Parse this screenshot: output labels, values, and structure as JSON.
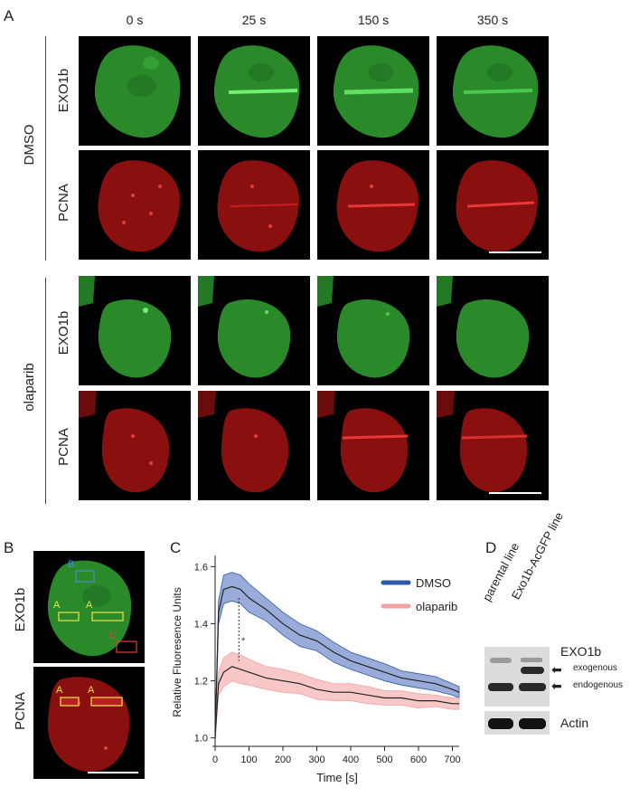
{
  "panel_letters": {
    "a": "A",
    "b": "B",
    "c": "C",
    "d": "D"
  },
  "panel_a": {
    "timepoints": [
      "0 s",
      "25 s",
      "150 s",
      "350 s"
    ],
    "conditions": [
      "DMSO",
      "olaparib"
    ],
    "channels": [
      "EXO1b",
      "PCNA"
    ]
  },
  "panel_b": {
    "channels": [
      "EXO1b",
      "PCNA"
    ],
    "roi_labels": {
      "a": "A",
      "b": "B",
      "c": "C"
    }
  },
  "chart_data": {
    "type": "line",
    "title": "",
    "xlabel": "Time [s]",
    "ylabel": "Relative Fluoresence Units",
    "xlim": [
      0,
      720
    ],
    "ylim": [
      0.98,
      1.62
    ],
    "xticks": [
      0,
      100,
      200,
      300,
      400,
      500,
      600,
      700
    ],
    "yticks": [
      1.0,
      1.2,
      1.4,
      1.6
    ],
    "legend_position": "top-right",
    "annotation": "*",
    "annotation_x": 70,
    "x": [
      0,
      10,
      25,
      50,
      75,
      100,
      150,
      200,
      250,
      300,
      350,
      400,
      450,
      500,
      550,
      600,
      650,
      700,
      720
    ],
    "series": [
      {
        "name": "DMSO",
        "color": "#2a5aa8",
        "band_color": "#7f97d0",
        "values": [
          1.0,
          1.44,
          1.52,
          1.53,
          1.52,
          1.49,
          1.45,
          1.4,
          1.36,
          1.34,
          1.3,
          1.27,
          1.25,
          1.23,
          1.21,
          1.2,
          1.19,
          1.17,
          1.16
        ],
        "err": [
          0,
          0.04,
          0.05,
          0.05,
          0.05,
          0.05,
          0.04,
          0.04,
          0.04,
          0.035,
          0.035,
          0.03,
          0.03,
          0.03,
          0.025,
          0.025,
          0.025,
          0.02,
          0.02
        ]
      },
      {
        "name": "olaparib",
        "color": "#f2a0a0",
        "band_color": "#f6b9b9",
        "values": [
          1.0,
          1.19,
          1.23,
          1.25,
          1.24,
          1.23,
          1.21,
          1.2,
          1.19,
          1.17,
          1.16,
          1.16,
          1.15,
          1.14,
          1.14,
          1.13,
          1.13,
          1.12,
          1.12
        ],
        "err": [
          0,
          0.04,
          0.05,
          0.05,
          0.05,
          0.045,
          0.04,
          0.04,
          0.035,
          0.035,
          0.03,
          0.03,
          0.03,
          0.025,
          0.025,
          0.025,
          0.02,
          0.02,
          0.02
        ]
      }
    ]
  },
  "panel_d": {
    "lanes": [
      "parental line",
      "Exo1b-AcGFP line"
    ],
    "target": "EXO1b",
    "bands": [
      "exogenous",
      "endogenous"
    ],
    "loading": "Actin"
  }
}
